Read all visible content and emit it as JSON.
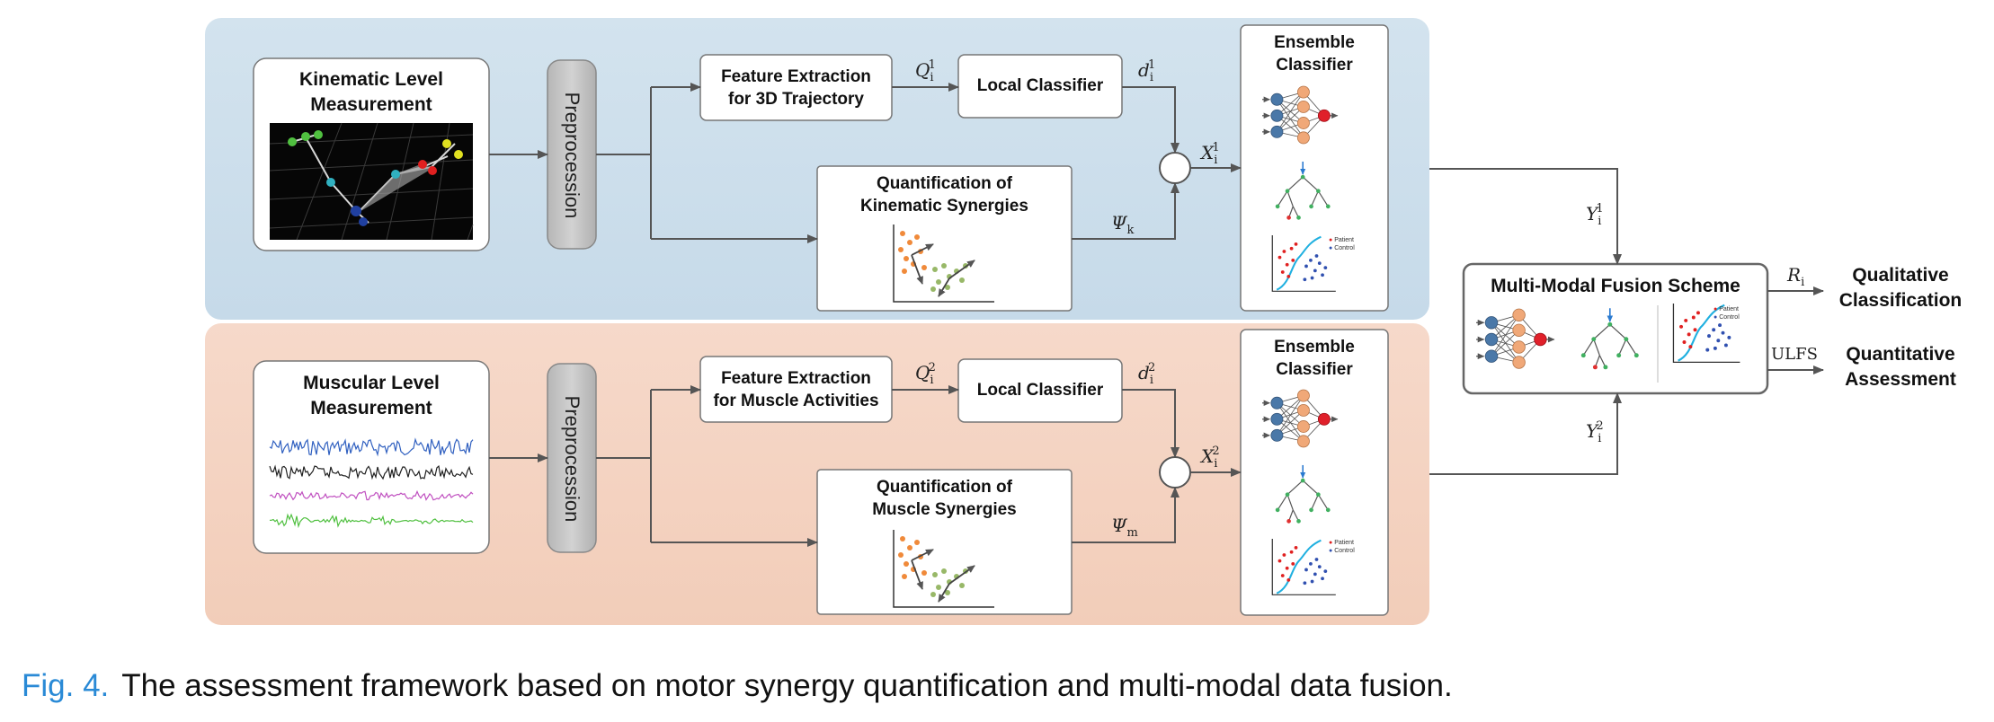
{
  "kinematic": {
    "measurement": [
      "Kinematic Level",
      "Measurement"
    ],
    "preprocess": "Preprocession",
    "feature": [
      "Feature Extraction",
      "for 3D Trajectory"
    ],
    "local": "Local Classifier",
    "synergy": [
      "Quantification of",
      "Kinematic Synergies"
    ],
    "ensemble": [
      "Ensemble",
      "Classifier"
    ],
    "q_sym": "Q",
    "q_sup": "1",
    "q_sub": "i",
    "d_sym": "d",
    "d_sup": "1",
    "d_sub": "i",
    "x_sym": "X",
    "x_sup": "1",
    "x_sub": "i",
    "psi_sym": "Ψ",
    "psi_sub": "k",
    "y_sym": "Y",
    "y_sup": "1",
    "y_sub": "i",
    "legend": [
      "Patient",
      "Control"
    ]
  },
  "muscular": {
    "measurement": [
      "Muscular Level",
      "Measurement"
    ],
    "preprocess": "Preprocession",
    "feature": [
      "Feature Extraction",
      "for Muscle Activities"
    ],
    "local": "Local Classifier",
    "synergy": [
      "Quantification of",
      "Muscle Synergies"
    ],
    "ensemble": [
      "Ensemble",
      "Classifier"
    ],
    "q_sym": "Q",
    "q_sup": "2",
    "q_sub": "i",
    "d_sym": "d",
    "d_sup": "2",
    "d_sub": "i",
    "x_sym": "X",
    "x_sup": "2",
    "x_sub": "i",
    "psi_sym": "Ψ",
    "psi_sub": "m",
    "y_sym": "Y",
    "y_sup": "2",
    "y_sub": "i",
    "legend": [
      "Patient",
      "Control"
    ]
  },
  "fusion": {
    "title": "Multi-Modal Fusion Scheme",
    "r_sym": "R",
    "r_sub": "i",
    "ulfs": "ULFS",
    "out1": [
      "Qualitative",
      "Classification"
    ],
    "out2": [
      "Quantitative",
      "Assessment"
    ],
    "legend": [
      "Patient",
      "Control"
    ]
  },
  "caption": {
    "fig": "Fig. 4.",
    "text": "The assessment framework based on motor synergy quantification and multi-modal data fusion."
  },
  "colors": {
    "kin_panel": "#cddfea",
    "mus_panel": "#f4d4c4",
    "node_blue": "#4a78a8",
    "node_orange": "#f0a878",
    "node_red": "#e0202a",
    "tree_green": "#40b060",
    "tree_red": "#e03030",
    "caption_fig": "#2a8ad6"
  }
}
